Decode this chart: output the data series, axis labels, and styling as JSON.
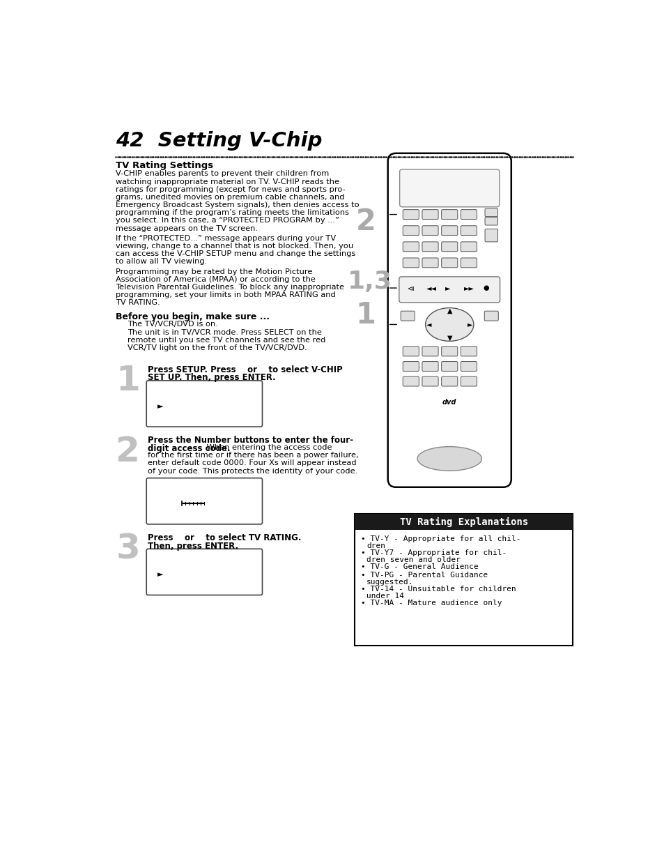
{
  "title": "42  Setting V-Chip",
  "background_color": "#ffffff",
  "page_width": 9.54,
  "page_height": 12.35,
  "section_title": "TV Rating Settings",
  "body_text_1a": "V-CHIP enables parents to prevent their children from",
  "body_text_1b": "watching inappropriate material on TV. V-CHIP reads the",
  "body_text_1c": "ratings for programming (except for news and sports pro-",
  "body_text_1d": "grams, unedited movies on premium cable channels, and",
  "body_text_1e": "Emergency Broadcast System signals), then denies access to",
  "body_text_1f": "programming if the program’s rating meets the limitations",
  "body_text_1g": "you select. In this case, a “PROTECTED PROGRAM by ...”",
  "body_text_1h": "message appears on the TV screen.",
  "body_text_2a": "If the “PROTECTED...” message appears during your TV",
  "body_text_2b": "viewing, change to a channel that is not blocked. Then, you",
  "body_text_2c": "can access the V-CHIP SETUP menu and change the settings",
  "body_text_2d": "to allow all TV viewing.",
  "body_text_3a": "Programming may be rated by the Motion Picture",
  "body_text_3b": "Association of America (MPAA) or according to the",
  "body_text_3c": "Television Parental Guidelines. To block any inappropriate",
  "body_text_3d": "programming, set your limits in both MPAA RATING and",
  "body_text_3e": "TV RATING.",
  "before_title": "Before you begin, make sure ...",
  "before_text_a": "The TV/VCR/DVD is on.",
  "before_text_b": "The unit is in TV/VCR mode. Press SELECT on the",
  "before_text_c": "remote until you see TV channels and see the red",
  "before_text_d": "VCR/TV light on the front of the TV/VCR/DVD.",
  "step1_text": "Press SETUP. Press    or    to select V-CHIP",
  "step1_text2": "SET UP. Then, press ENTER.",
  "step2_bold1": "Press the Number buttons to enter the four-",
  "step2_bold2": "digit access code.",
  "step2_norm1": " When entering the access code",
  "step2_norm2": "for the first time or if there has been a power failure,",
  "step2_norm3": "enter default code 0000. Four Xs will appear instead",
  "step2_norm4": "of your code. This protects the identity of your code.",
  "step3_text1": "Press    or    to select TV RATING.",
  "step3_text2": "Then, press ENTER.",
  "explanations_title": "TV Rating Explanations",
  "exp1a": "TV-Y - Appropriate for all chil-",
  "exp1b": "dren",
  "exp2a": "TV-Y7 - Appropriate for chil-",
  "exp2b": "dren seven and older",
  "exp3": "TV-G - General Audience",
  "exp4a": "TV-PG - Parental Guidance",
  "exp4b": "suggested.",
  "exp5a": "TV-14 - Unsuitable for children",
  "exp5b": "under 14",
  "exp6": "TV-MA - Mature audience only",
  "num2_color": "#888888",
  "num13_color": "#888888",
  "num1b_color": "#888888",
  "step_num_color": "#b0b0b0"
}
